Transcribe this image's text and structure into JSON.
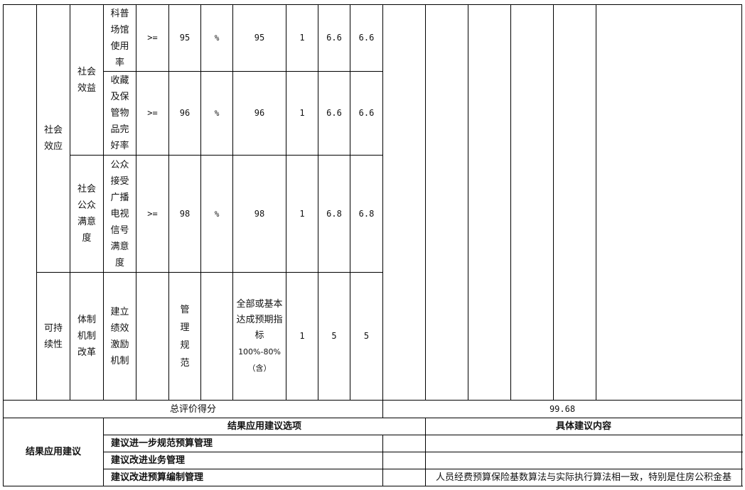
{
  "rows": [
    {
      "level1": "社会效应",
      "level2": "社会效益",
      "indicator": "科普场馆使用率",
      "operator": ">=",
      "target": "95",
      "unit": "%",
      "actual": "95",
      "weight": "1",
      "score_max": "6.6",
      "score": "6.6"
    },
    {
      "indicator": "收藏及保管物品完好率",
      "operator": ">=",
      "target": "96",
      "unit": "%",
      "actual": "96",
      "weight": "1",
      "score_max": "6.6",
      "score": "6.6"
    },
    {
      "level2": "社会公众满意度",
      "indicator": "公众接受广播电视信号满意度",
      "operator": ">=",
      "target": "98",
      "unit": "%",
      "actual": "98",
      "weight": "1",
      "score_max": "6.8",
      "score": "6.8"
    },
    {
      "level1": "可持续性",
      "level2": "体制机制改革",
      "indicator": "建立绩效激励机制",
      "operator": "",
      "target": "管理规范",
      "unit": "",
      "actual": "全部或基本达成预期指标",
      "actual_note": "100%-80%（含）",
      "weight": "1",
      "score_max": "5",
      "score": "5"
    }
  ],
  "total": {
    "label": "总评价得分",
    "value": "99.68"
  },
  "suggestions": {
    "section_label": "结果应用建议",
    "options_header": "结果应用建议选项",
    "content_header": "具体建议内容",
    "items": [
      {
        "option": "建议进一步规范预算管理",
        "content": ""
      },
      {
        "option": "建议改进业务管理",
        "content": ""
      },
      {
        "option": "建议改进预算编制管理",
        "content": "人员经费预算保险基数算法与实际执行算法相一致，特别是住房公积金基"
      }
    ]
  }
}
